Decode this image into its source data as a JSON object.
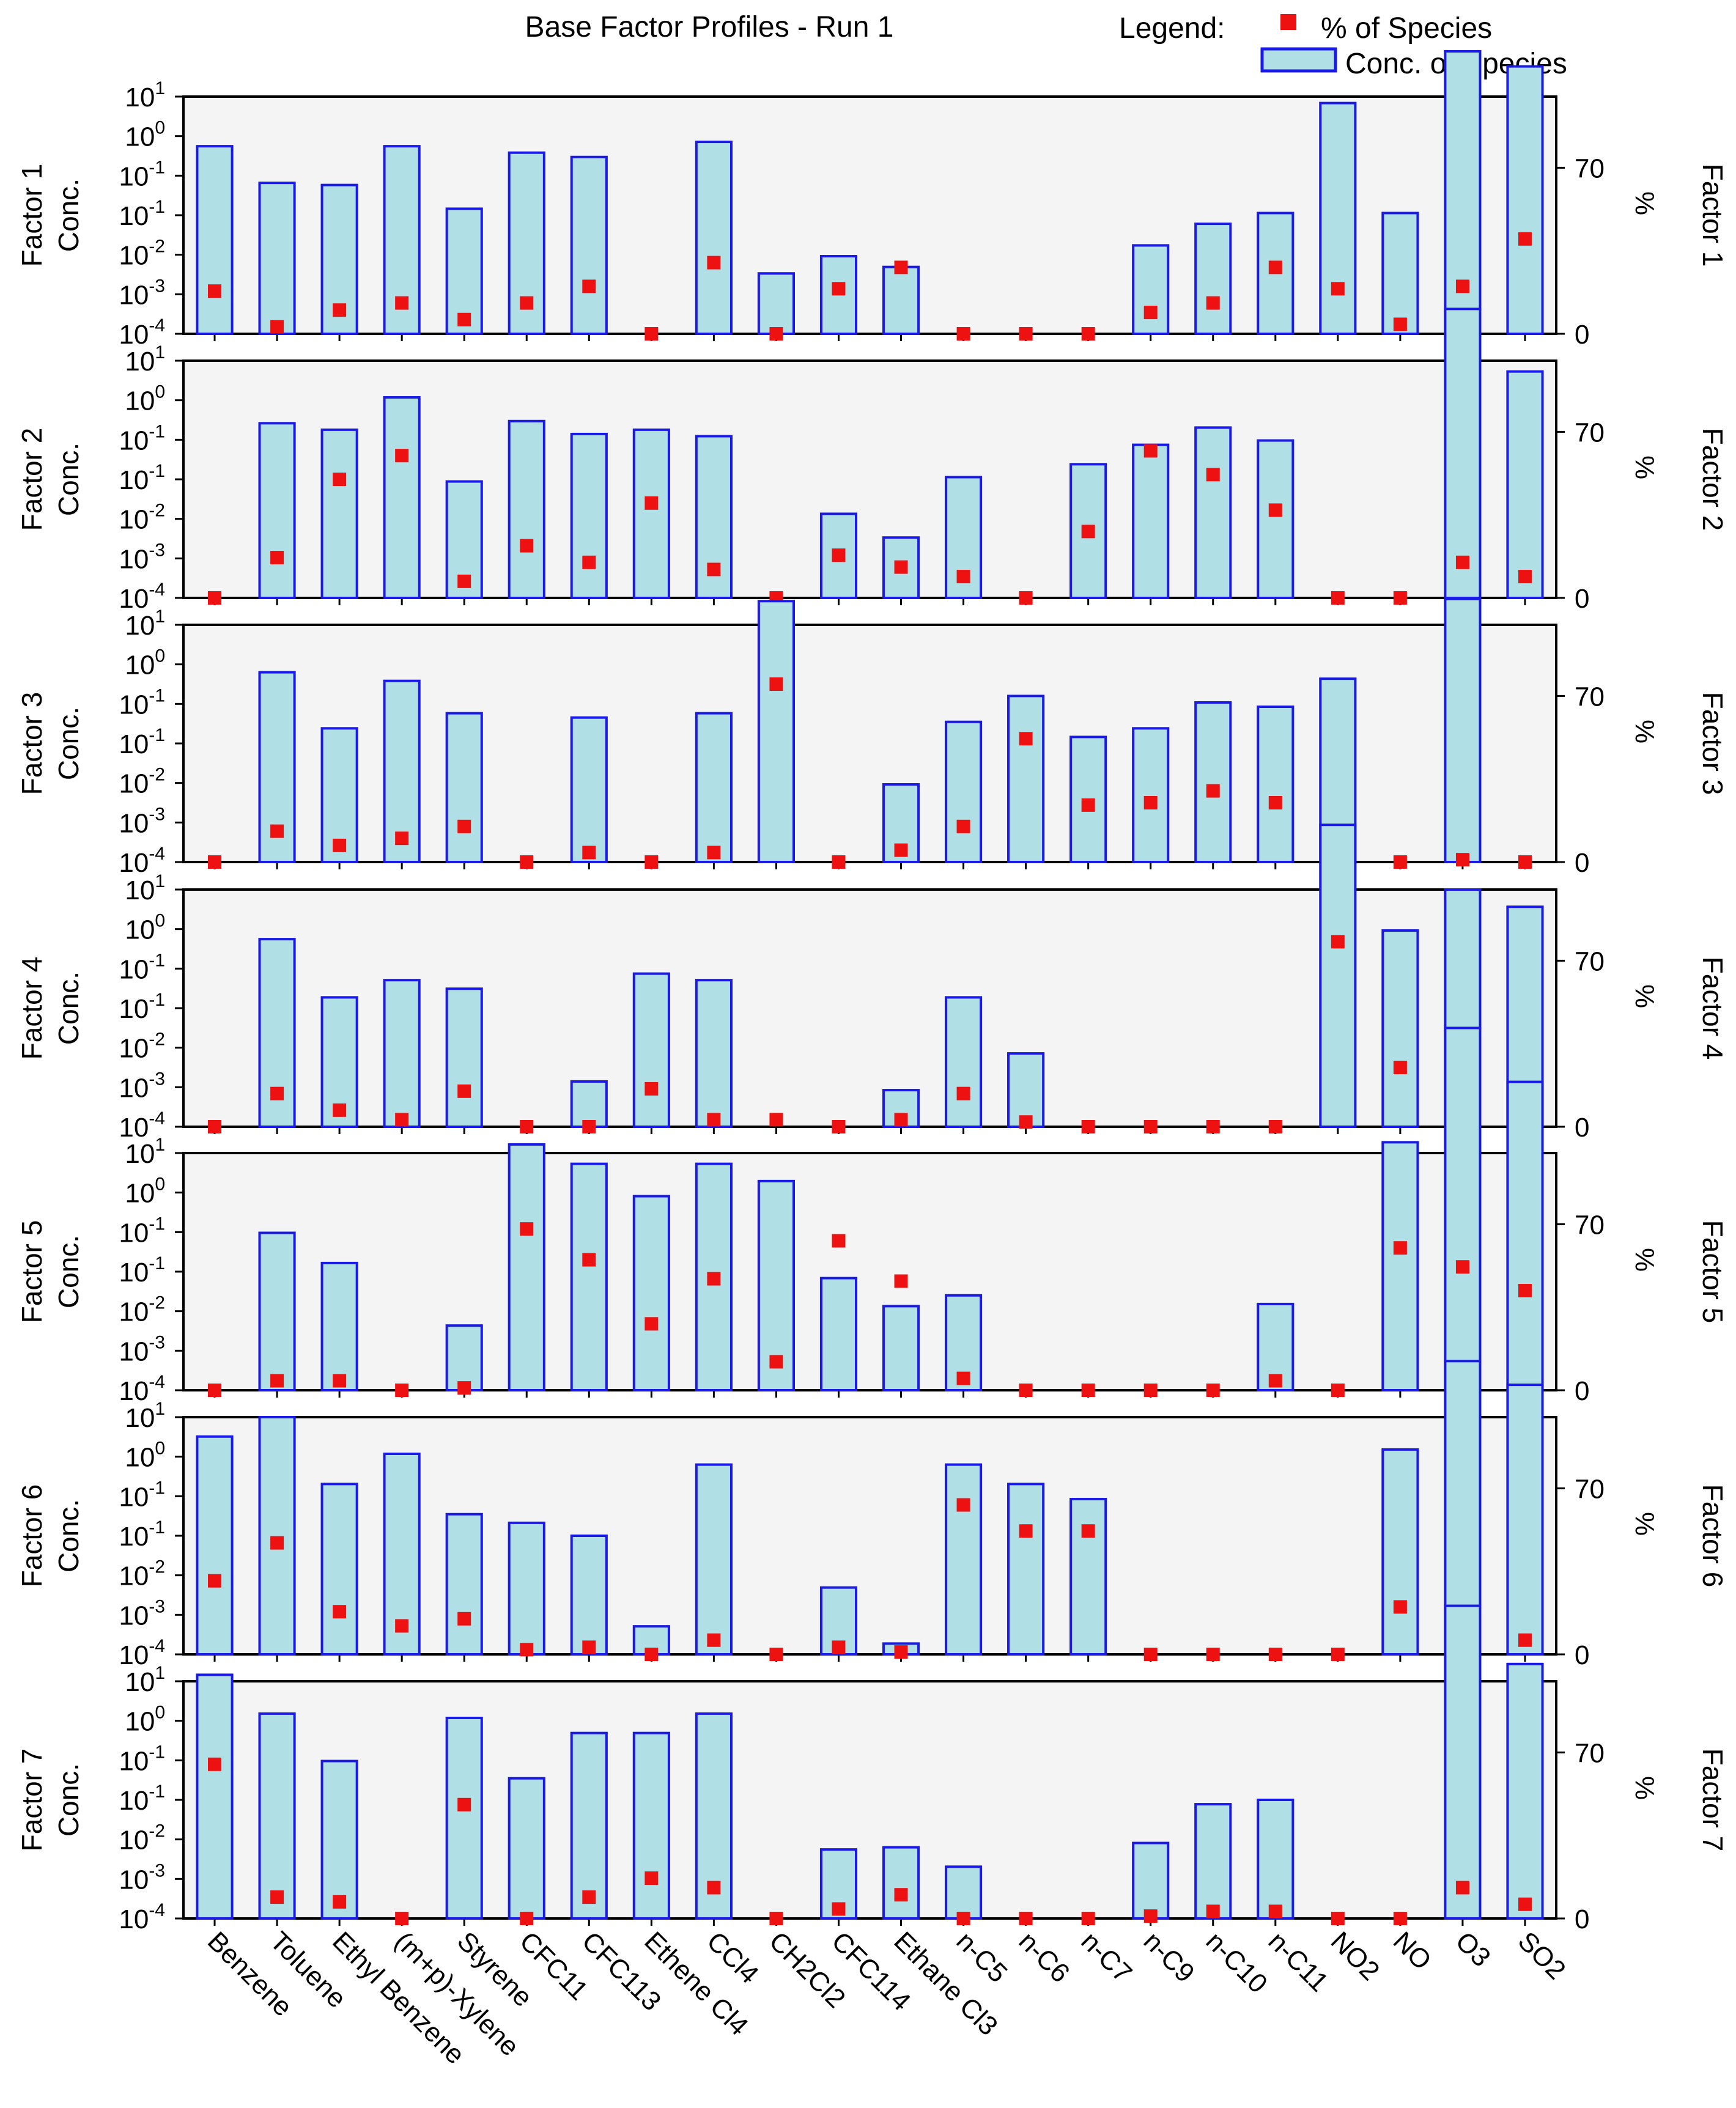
{
  "chart_data": {
    "type": "bar",
    "title": "Base Factor Profiles - Run 1",
    "legend": {
      "title": "Legend:",
      "items": [
        {
          "label": "% of Species",
          "marker": "square",
          "color": "#ee1111"
        },
        {
          "label": "Conc. of Species",
          "marker": "bar",
          "fill": "#b0e0e6",
          "stroke": "#1a1ae6"
        }
      ],
      "placement": "top-right"
    },
    "categories": [
      "Benzene",
      "Toluene",
      "Ethyl Benzene",
      "(m+p)-Xylene",
      "Styrene",
      "CFC11",
      "CFC113",
      "Ethene Cl4",
      "CCl4",
      "CH2Cl2",
      "CFC114",
      "Ethane Cl3",
      "n-C5",
      "n-C6",
      "n-C7",
      "n-C9",
      "n-C10",
      "n-C11",
      "NO2",
      "NO",
      "O3",
      "SO2"
    ],
    "y_left": {
      "scale": "log",
      "range_exp": [
        -4,
        1.5
      ],
      "ticks": [
        {
          "base": "10",
          "exp": "-4"
        },
        {
          "base": "10",
          "exp": "-3"
        },
        {
          "base": "10",
          "exp": "-2"
        },
        {
          "base": "10",
          "exp": "-1"
        },
        {
          "base": "10",
          "exp": "-1"
        },
        {
          "base": "10",
          "exp": "0"
        },
        {
          "base": "10",
          "exp": "1"
        }
      ]
    },
    "y_right": {
      "label": "%",
      "range": [
        0,
        100
      ],
      "ticks": [
        "0",
        "70"
      ]
    },
    "panels": [
      {
        "label": "Factor 1",
        "ylabel": "Conc.",
        "right_label": "Factor 1",
        "conc_exp": [
          0.35,
          -0.5,
          -0.55,
          0.35,
          -1.1,
          0.2,
          0.1,
          null,
          0.45,
          -2.6,
          -2.2,
          -2.45,
          null,
          null,
          null,
          -1.95,
          -1.45,
          -1.2,
          1.35,
          -1.2,
          2.55,
          2.2
        ],
        "pct": [
          18,
          3,
          10,
          13,
          6,
          13,
          20,
          0,
          30,
          0,
          19,
          28,
          0,
          0,
          0,
          9,
          13,
          28,
          19,
          4,
          20,
          40
        ]
      },
      {
        "label": "Factor 2",
        "ylabel": "Conc.",
        "right_label": "Factor 2",
        "conc_exp": [
          null,
          0.05,
          -0.1,
          0.65,
          -1.3,
          0.1,
          -0.2,
          -0.1,
          -0.25,
          null,
          -2.05,
          -2.6,
          -1.2,
          null,
          -0.9,
          -0.45,
          -0.05,
          -0.35,
          null,
          null,
          2.7,
          1.25
        ],
        "pct": [
          0,
          17,
          50,
          60,
          7,
          22,
          15,
          40,
          12,
          0,
          18,
          13,
          9,
          0,
          28,
          62,
          52,
          37,
          0,
          0,
          15,
          9
        ]
      },
      {
        "label": "Factor 3",
        "ylabel": "Conc.",
        "right_label": "Factor 3",
        "conc_exp": [
          null,
          0.4,
          -0.9,
          0.2,
          -0.55,
          null,
          -0.65,
          null,
          -0.55,
          2.05,
          null,
          -2.2,
          -0.75,
          -0.15,
          -1.1,
          -0.9,
          -0.3,
          -0.4,
          0.25,
          null,
          2.1,
          null
        ],
        "pct": [
          0,
          13,
          7,
          10,
          15,
          0,
          4,
          0,
          4,
          75,
          0,
          5,
          15,
          52,
          24,
          25,
          30,
          25,
          1,
          0,
          1,
          0
        ]
      },
      {
        "label": "Factor 4",
        "ylabel": "Conc.",
        "right_label": "Factor 4",
        "conc_exp": [
          null,
          0.35,
          -1.0,
          -0.6,
          -0.8,
          null,
          -2.95,
          -0.45,
          -0.6,
          null,
          null,
          -3.15,
          -1.0,
          -2.3,
          null,
          null,
          null,
          null,
          3.0,
          0.55,
          1.5,
          1.1
        ],
        "pct": [
          0,
          14,
          7,
          3,
          15,
          0,
          0,
          16,
          3,
          3,
          0,
          3,
          14,
          2,
          0,
          0,
          0,
          0,
          78,
          25,
          2,
          3
        ]
      },
      {
        "label": "Factor 5",
        "ylabel": "Conc.",
        "right_label": "Factor 5",
        "conc_exp": [
          null,
          -0.35,
          -1.05,
          null,
          -2.5,
          1.7,
          1.25,
          0.5,
          1.25,
          0.85,
          -1.4,
          -2.05,
          -1.8,
          null,
          null,
          null,
          null,
          -2.0,
          null,
          1.75,
          4.4,
          3.15
        ],
        "pct": [
          0,
          4,
          4,
          0,
          1,
          68,
          55,
          28,
          47,
          12,
          63,
          46,
          5,
          0,
          0,
          0,
          0,
          4,
          0,
          60,
          52,
          42
        ]
      },
      {
        "label": "Factor 6",
        "ylabel": "Conc.",
        "right_label": "Factor 6",
        "conc_exp": [
          1.05,
          1.5,
          -0.05,
          0.65,
          -0.75,
          -0.95,
          -1.25,
          -3.35,
          0.4,
          null,
          -2.45,
          -3.75,
          0.4,
          -0.05,
          -0.4,
          null,
          null,
          null,
          null,
          0.75,
          2.8,
          2.25
        ],
        "pct": [
          31,
          47,
          18,
          12,
          15,
          2,
          3,
          0,
          6,
          0,
          3,
          1,
          63,
          52,
          52,
          0,
          0,
          0,
          0,
          20,
          3,
          6
        ]
      },
      {
        "label": "Factor 7",
        "ylabel": "Conc.",
        "right_label": "Factor 7",
        "conc_exp": [
          1.65,
          0.75,
          -0.35,
          null,
          0.65,
          -0.75,
          0.3,
          0.3,
          0.75,
          null,
          -2.4,
          -2.35,
          -2.8,
          null,
          null,
          -2.25,
          -1.35,
          -1.25,
          null,
          null,
          3.25,
          1.9
        ],
        "pct": [
          65,
          9,
          7,
          0,
          48,
          0,
          9,
          17,
          13,
          0,
          4,
          10,
          0,
          0,
          0,
          1,
          3,
          3,
          0,
          0,
          13,
          6
        ]
      }
    ]
  }
}
